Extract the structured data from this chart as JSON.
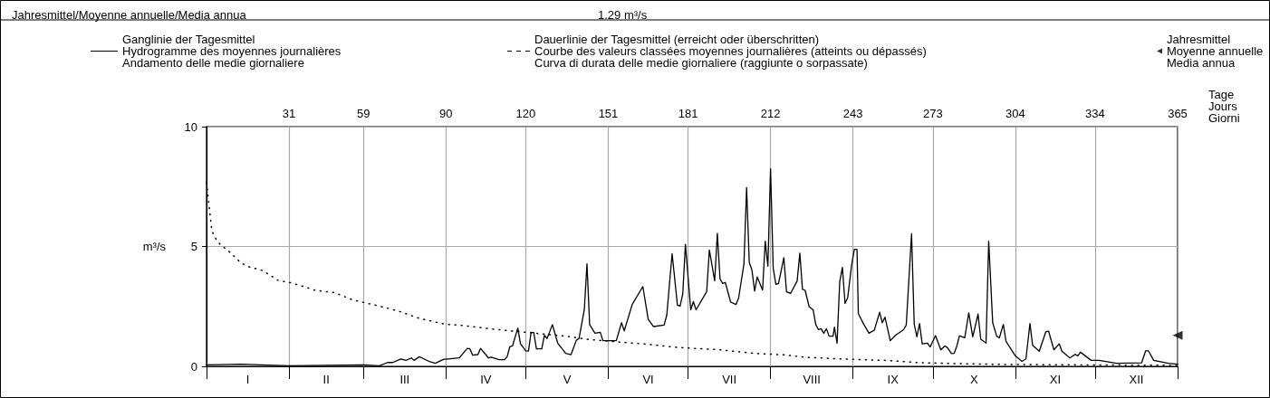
{
  "chart_data": {
    "type": "line",
    "title": "Jahresmittel/Moyenne annuelle/Media annua",
    "subtitle": "1.29 m³/s",
    "ylabel": "m³/s",
    "xlabel": "Tage\nJours\nGiorni",
    "annotations": [
      "I",
      "II",
      "III",
      "IV",
      "V",
      "VI",
      "VII",
      "VIII",
      "IX",
      "X",
      "XI",
      "XII"
    ],
    "xlim": [
      0,
      365
    ],
    "xticks": [
      31,
      59,
      90,
      120,
      151,
      181,
      212,
      243,
      273,
      304,
      334,
      365
    ],
    "ylim": [
      0,
      10
    ],
    "yticks": [
      0,
      5,
      10
    ],
    "grid": true,
    "legend": "top",
    "marker": "none",
    "series": [
      {
        "name": "Ganglinie der Tagesmittel\nHydrogramme des moyennes journalières\nAndamento delle medie giornaliere",
        "color": "#000000",
        "line_style": "solid",
        "x": [
          0,
          13,
          31,
          59,
          65,
          68,
          70,
          73,
          75,
          77,
          78,
          80,
          84,
          86,
          89,
          95,
          98,
          99,
          100,
          102,
          103,
          106,
          107,
          110,
          112,
          113,
          114,
          115,
          117,
          118,
          120,
          121,
          122,
          123,
          124,
          126,
          127,
          128,
          130,
          132,
          135,
          137,
          139,
          140,
          142,
          143,
          144,
          146,
          148,
          149,
          154,
          156,
          157,
          160,
          164,
          166,
          168,
          172,
          173,
          175,
          177,
          178,
          179,
          180,
          182,
          183,
          184,
          188,
          189,
          191,
          192,
          193,
          194,
          195,
          197,
          199,
          200,
          202,
          203,
          204,
          205,
          206,
          207,
          209,
          210,
          211,
          212,
          213,
          214,
          215,
          217,
          218,
          219.5,
          222,
          223,
          224,
          225,
          226.5,
          228,
          229,
          230,
          231,
          232,
          233,
          234,
          235.5,
          236,
          237,
          238,
          239,
          240,
          241,
          242.5,
          243.5,
          244.5,
          245,
          247,
          249,
          251,
          253,
          254,
          255,
          257,
          259,
          262,
          263,
          265,
          266,
          267,
          268,
          269,
          271,
          272,
          274,
          276,
          277.5,
          278.5,
          280,
          281,
          282,
          283,
          285,
          286.5,
          288,
          290,
          291,
          293,
          294,
          295.5,
          297,
          298,
          299.5,
          300.5,
          304,
          306.5,
          308,
          309.5,
          310.5,
          313,
          315.5,
          316.5,
          318.5,
          320.5,
          321.5,
          324.5,
          326.5,
          327.5,
          328.5,
          332.5,
          335.5,
          342,
          351.5,
          353,
          354,
          356,
          361.5,
          365
        ],
        "values": [
          0.06,
          0.09,
          0.02,
          0.06,
          0.02,
          0.16,
          0.16,
          0.31,
          0.25,
          0.35,
          0.25,
          0.4,
          0.19,
          0.13,
          0.29,
          0.35,
          0.75,
          0.73,
          0.47,
          0.49,
          0.75,
          0.35,
          0.38,
          0.28,
          0.28,
          0.4,
          0.82,
          0.85,
          1.6,
          0.94,
          0.65,
          0.64,
          1.42,
          1.41,
          0.73,
          0.73,
          1.3,
          1.16,
          1.74,
          0.97,
          0.54,
          0.49,
          1.09,
          1.16,
          2.37,
          4.28,
          1.74,
          1.38,
          1.42,
          1.07,
          1.07,
          1.82,
          1.48,
          2.58,
          3.33,
          1.97,
          1.66,
          1.72,
          2.14,
          4.7,
          2.55,
          2.51,
          3.02,
          5.09,
          2.36,
          2.7,
          2.36,
          3.12,
          4.85,
          3.57,
          5.55,
          3.65,
          3.46,
          3.5,
          2.68,
          2.58,
          2.85,
          4.28,
          7.46,
          4.34,
          4.02,
          3.14,
          3.73,
          3.18,
          5.22,
          4.18,
          8.24,
          4.09,
          3.42,
          3.46,
          4.53,
          3.11,
          3.04,
          3.56,
          4.72,
          3.21,
          3.17,
          2.49,
          2.36,
          1.74,
          1.53,
          1.57,
          1.38,
          1.57,
          1.26,
          1.26,
          1.64,
          0.97,
          3.52,
          4.13,
          2.62,
          2.87,
          4.25,
          4.88,
          4.88,
          2.2,
          1.76,
          1.38,
          1.51,
          2.26,
          1.82,
          2.05,
          1.07,
          1.3,
          1.53,
          1.72,
          5.53,
          1.76,
          1.23,
          1.79,
          0.94,
          0.97,
          0.81,
          1.28,
          0.69,
          0.85,
          0.78,
          0.53,
          0.54,
          0.84,
          1.28,
          1.19,
          2.23,
          1.23,
          2.18,
          1.13,
          0.97,
          5.22,
          1.82,
          1.26,
          1.19,
          1.75,
          1.04,
          0.44,
          0.21,
          0.31,
          1.79,
          0.88,
          0.63,
          1.45,
          1.47,
          0.69,
          0.94,
          0.63,
          0.35,
          0.5,
          0.44,
          0.59,
          0.25,
          0.25,
          0.13,
          0.15,
          0.65,
          0.65,
          0.25,
          0.13,
          0.09
        ]
      },
      {
        "name": "Dauerlinie der Tagesmittel (erreicht oder überschritten)\nCourbe des valeurs classées moyennes journalières (atteints ou dépassés)\nCurva di durata delle medie giornaliere (raggiunte o sorpassate)",
        "color": "#000000",
        "line_style": "dotted",
        "x": [
          0,
          1,
          2,
          4,
          5,
          9,
          13,
          16,
          21,
          27,
          32,
          37,
          41,
          48,
          55,
          62,
          68,
          72,
          80,
          90,
          96,
          108,
          120,
          135,
          143,
          151,
          164,
          177,
          193,
          206,
          217,
          225,
          238,
          255,
          267,
          279,
          300,
          330,
          365
        ],
        "values": [
          7.67,
          6.65,
          5.65,
          5.22,
          5.1,
          4.74,
          4.31,
          4.15,
          4.0,
          3.58,
          3.48,
          3.31,
          3.17,
          3.08,
          2.77,
          2.59,
          2.43,
          2.31,
          2.0,
          1.75,
          1.71,
          1.55,
          1.42,
          1.26,
          1.13,
          1.05,
          0.94,
          0.79,
          0.69,
          0.54,
          0.48,
          0.38,
          0.31,
          0.25,
          0.16,
          0.12,
          0.08,
          0.06,
          0.04
        ]
      },
      {
        "type": "scatter",
        "name": "Jahresmittel\nMoyenne annuelle\nMedia annua",
        "color": "#000000",
        "marker": "triangle",
        "x": [
          365
        ],
        "values": [
          1.29
        ]
      }
    ]
  }
}
